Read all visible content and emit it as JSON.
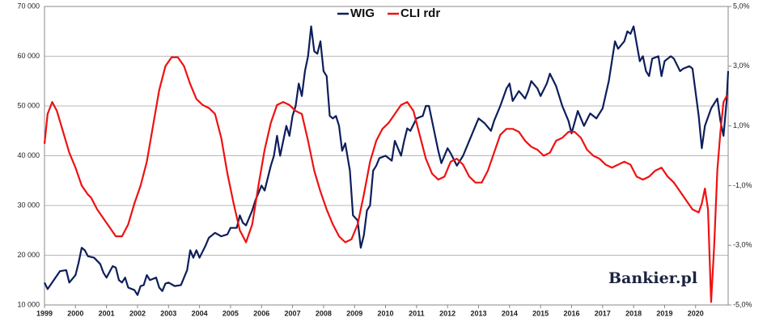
{
  "chart_data": {
    "type": "line",
    "watermark": "Bankier.pl",
    "xlim": [
      1999,
      2021.05
    ],
    "xticks": [
      1999,
      2000,
      2001,
      2002,
      2003,
      2004,
      2005,
      2006,
      2007,
      2008,
      2009,
      2010,
      2011,
      2012,
      2013,
      2014,
      2015,
      2016,
      2017,
      2018,
      2019,
      2020
    ],
    "ylim": [
      10000,
      70000
    ],
    "yticks": [
      {
        "value": 10000,
        "label": "10 000"
      },
      {
        "value": 20000,
        "label": "20 000"
      },
      {
        "value": 30000,
        "label": "30 000"
      },
      {
        "value": 40000,
        "label": "40 000"
      },
      {
        "value": 50000,
        "label": "50 000"
      },
      {
        "value": 60000,
        "label": "60 000"
      },
      {
        "value": 70000,
        "label": "70 000"
      }
    ],
    "y2lim": [
      -5,
      5
    ],
    "y2ticks": [
      {
        "value": -5,
        "label": "-5,0%"
      },
      {
        "value": -3,
        "label": "-3,0%"
      },
      {
        "value": -1,
        "label": "-1,0%"
      },
      {
        "value": 1,
        "label": "1,0%"
      },
      {
        "value": 3,
        "label": "3,0%"
      },
      {
        "value": 5,
        "label": "5,0%"
      }
    ],
    "grid": true,
    "legend": "top",
    "series": [
      {
        "name": "WIG",
        "color": "#0d1e5b",
        "x": [
          1999.0,
          1999.1,
          1999.3,
          1999.5,
          1999.7,
          1999.8,
          2000.0,
          2000.1,
          2000.2,
          2000.3,
          2000.4,
          2000.6,
          2000.8,
          2000.9,
          2001.0,
          2001.2,
          2001.3,
          2001.4,
          2001.5,
          2001.6,
          2001.7,
          2001.9,
          2002.0,
          2002.1,
          2002.2,
          2002.3,
          2002.4,
          2002.6,
          2002.7,
          2002.8,
          2002.9,
          2003.0,
          2003.2,
          2003.4,
          2003.5,
          2003.6,
          2003.7,
          2003.8,
          2003.9,
          2004.0,
          2004.2,
          2004.3,
          2004.5,
          2004.7,
          2004.9,
          2005.0,
          2005.2,
          2005.3,
          2005.4,
          2005.5,
          2005.7,
          2005.8,
          2006.0,
          2006.1,
          2006.3,
          2006.4,
          2006.5,
          2006.6,
          2006.8,
          2006.9,
          2007.0,
          2007.1,
          2007.2,
          2007.3,
          2007.4,
          2007.5,
          2007.6,
          2007.7,
          2007.8,
          2007.9,
          2008.0,
          2008.1,
          2008.2,
          2008.3,
          2008.4,
          2008.5,
          2008.6,
          2008.7,
          2008.85,
          2008.95,
          2009.1,
          2009.2,
          2009.3,
          2009.4,
          2009.5,
          2009.6,
          2009.7,
          2009.8,
          2010.0,
          2010.2,
          2010.3,
          2010.5,
          2010.6,
          2010.7,
          2010.8,
          2011.0,
          2011.2,
          2011.3,
          2011.4,
          2011.5,
          2011.7,
          2011.8,
          2012.0,
          2012.1,
          2012.3,
          2012.5,
          2012.7,
          2012.9,
          2013.0,
          2013.2,
          2013.4,
          2013.5,
          2013.7,
          2013.9,
          2014.0,
          2014.1,
          2014.3,
          2014.5,
          2014.6,
          2014.7,
          2014.9,
          2015.0,
          2015.2,
          2015.3,
          2015.5,
          2015.7,
          2015.9,
          2016.0,
          2016.2,
          2016.4,
          2016.6,
          2016.8,
          2017.0,
          2017.2,
          2017.3,
          2017.4,
          2017.5,
          2017.7,
          2017.8,
          2017.9,
          2018.0,
          2018.2,
          2018.3,
          2018.4,
          2018.5,
          2018.6,
          2018.8,
          2018.9,
          2019.0,
          2019.2,
          2019.3,
          2019.5,
          2019.6,
          2019.8,
          2019.9,
          2020.1,
          2020.2,
          2020.3,
          2020.5,
          2020.7,
          2020.8,
          2020.9,
          2021.0,
          2021.05
        ],
        "values": [
          14500,
          13200,
          15000,
          16800,
          17000,
          14500,
          16000,
          18500,
          21500,
          21000,
          19800,
          19500,
          18200,
          16500,
          15500,
          17800,
          17500,
          15000,
          14500,
          15500,
          13500,
          13000,
          12000,
          13800,
          14000,
          16000,
          15000,
          15500,
          13500,
          12800,
          14300,
          14500,
          13800,
          14000,
          15500,
          17000,
          21000,
          19500,
          21000,
          19500,
          22000,
          23500,
          24500,
          23800,
          24200,
          25500,
          25500,
          28000,
          26500,
          26000,
          29000,
          31000,
          34000,
          33000,
          38000,
          40000,
          44000,
          40000,
          46000,
          44000,
          48000,
          50000,
          54500,
          52000,
          57000,
          60000,
          66000,
          61000,
          60500,
          63000,
          57000,
          56000,
          48000,
          47500,
          48000,
          46000,
          41000,
          42500,
          37000,
          28000,
          27000,
          21500,
          24000,
          29000,
          30000,
          37000,
          38000,
          39500,
          40000,
          39000,
          43000,
          40000,
          43000,
          45500,
          45000,
          47500,
          48000,
          50000,
          50000,
          47000,
          41000,
          38500,
          41500,
          40500,
          38000,
          40000,
          43000,
          46000,
          47500,
          46500,
          45000,
          47000,
          50000,
          53500,
          54500,
          51000,
          53000,
          51500,
          53000,
          55000,
          53500,
          52000,
          54500,
          56500,
          54000,
          50000,
          47000,
          44500,
          49000,
          46000,
          48500,
          47500,
          49500,
          55000,
          59000,
          63000,
          61500,
          63000,
          65000,
          64500,
          66000,
          59000,
          60000,
          57000,
          56000,
          59500,
          60000,
          56000,
          59000,
          60000,
          59500,
          57000,
          57500,
          58000,
          57500,
          48000,
          41500,
          46000,
          49500,
          51500,
          47000,
          44000,
          51000,
          57000
        ]
      },
      {
        "name": "CLI rdr",
        "color": "#ee1111",
        "axis": "y2",
        "x": [
          1999.0,
          1999.1,
          1999.25,
          1999.4,
          1999.6,
          1999.8,
          2000.0,
          2000.2,
          2000.4,
          2000.5,
          2000.7,
          2000.9,
          2001.1,
          2001.3,
          2001.5,
          2001.7,
          2001.9,
          2002.1,
          2002.3,
          2002.5,
          2002.7,
          2002.9,
          2003.1,
          2003.3,
          2003.5,
          2003.7,
          2003.9,
          2004.1,
          2004.3,
          2004.5,
          2004.7,
          2004.9,
          2005.1,
          2005.3,
          2005.5,
          2005.7,
          2005.9,
          2006.1,
          2006.3,
          2006.5,
          2006.7,
          2006.9,
          2007.1,
          2007.3,
          2007.5,
          2007.7,
          2007.9,
          2008.1,
          2008.3,
          2008.5,
          2008.7,
          2008.9,
          2009.1,
          2009.3,
          2009.5,
          2009.7,
          2009.9,
          2010.1,
          2010.3,
          2010.5,
          2010.7,
          2010.9,
          2011.1,
          2011.3,
          2011.5,
          2011.7,
          2011.9,
          2012.1,
          2012.3,
          2012.5,
          2012.7,
          2012.9,
          2013.1,
          2013.3,
          2013.5,
          2013.7,
          2013.9,
          2014.1,
          2014.3,
          2014.5,
          2014.7,
          2014.9,
          2015.1,
          2015.3,
          2015.5,
          2015.7,
          2015.9,
          2016.1,
          2016.3,
          2016.5,
          2016.7,
          2016.9,
          2017.1,
          2017.3,
          2017.5,
          2017.7,
          2017.9,
          2018.1,
          2018.3,
          2018.5,
          2018.7,
          2018.9,
          2019.1,
          2019.3,
          2019.5,
          2019.7,
          2019.9,
          2020.1,
          2020.2,
          2020.3,
          2020.4,
          2020.5,
          2020.6,
          2020.7,
          2020.8,
          2020.9,
          2021.0,
          2021.05
        ],
        "values": [
          0.4,
          1.4,
          1.8,
          1.5,
          0.8,
          0.1,
          -0.4,
          -1.0,
          -1.3,
          -1.4,
          -1.8,
          -2.1,
          -2.4,
          -2.7,
          -2.7,
          -2.3,
          -1.6,
          -1.0,
          -0.2,
          1.0,
          2.2,
          3.0,
          3.3,
          3.3,
          3.0,
          2.4,
          1.9,
          1.7,
          1.6,
          1.4,
          0.6,
          -0.6,
          -1.6,
          -2.5,
          -2.9,
          -2.3,
          -1.0,
          0.2,
          1.1,
          1.7,
          1.8,
          1.7,
          1.5,
          1.4,
          0.5,
          -0.5,
          -1.2,
          -1.8,
          -2.3,
          -2.7,
          -2.9,
          -2.8,
          -2.3,
          -1.3,
          -0.2,
          0.5,
          0.9,
          1.1,
          1.4,
          1.7,
          1.8,
          1.5,
          0.7,
          -0.1,
          -0.6,
          -0.8,
          -0.7,
          -0.2,
          -0.1,
          -0.3,
          -0.7,
          -0.9,
          -0.9,
          -0.5,
          0.1,
          0.7,
          0.9,
          0.9,
          0.8,
          0.5,
          0.3,
          0.2,
          0.0,
          0.1,
          0.5,
          0.6,
          0.8,
          0.8,
          0.6,
          0.2,
          0.0,
          -0.1,
          -0.3,
          -0.4,
          -0.3,
          -0.2,
          -0.3,
          -0.7,
          -0.8,
          -0.7,
          -0.5,
          -0.4,
          -0.7,
          -0.9,
          -1.2,
          -1.5,
          -1.8,
          -1.9,
          -1.6,
          -1.1,
          -1.8,
          -4.9,
          -3.0,
          -0.5,
          0.8,
          1.8,
          2.0,
          2.0
        ]
      }
    ]
  }
}
